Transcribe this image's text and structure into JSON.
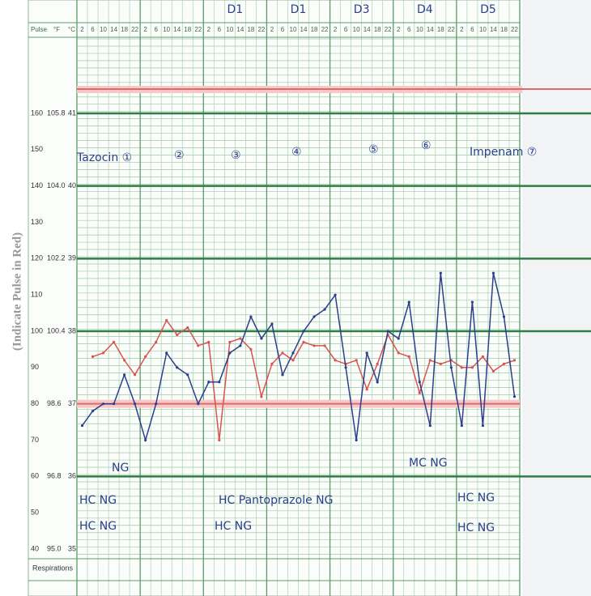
{
  "left_label": "(Indicate Pulse in Red)",
  "header": {
    "pulse": "Pulse",
    "fahrenheit": "°F",
    "celsius": "°C",
    "column_hours": [
      "2",
      "6",
      "10",
      "14",
      "18",
      "22"
    ],
    "days": [
      "D1",
      "D1",
      "D3",
      "D4",
      "D5"
    ]
  },
  "scale": {
    "pulse": [
      160,
      150,
      140,
      130,
      120,
      110,
      100,
      90,
      80,
      70,
      60,
      50,
      40
    ],
    "fahrenheit": [
      "105.8",
      "104.0",
      "102.2",
      "100.4",
      "98.6",
      "96.8",
      "95.0"
    ],
    "celsius": [
      41,
      40,
      39,
      38,
      37,
      36,
      35
    ]
  },
  "traces": {
    "pulse": {
      "color": "#d9534f",
      "values": [
        null,
        93,
        94,
        97,
        92,
        88,
        93,
        97,
        103,
        99,
        101,
        96,
        97,
        70,
        97,
        98,
        95,
        82,
        91,
        94,
        92,
        97,
        96,
        96,
        92,
        91,
        92,
        84,
        91,
        99,
        94,
        93,
        83,
        92,
        91,
        92,
        90,
        90,
        93,
        89,
        91,
        92
      ]
    },
    "temperature": {
      "color": "#2b3f8c",
      "values": [
        36.7,
        36.9,
        37.0,
        37.0,
        37.4,
        37.0,
        36.5,
        37.0,
        37.7,
        37.5,
        37.4,
        37.0,
        37.3,
        37.3,
        37.7,
        37.8,
        38.2,
        37.9,
        38.1,
        37.4,
        37.7,
        38.0,
        38.2,
        38.3,
        38.5,
        37.5,
        36.5,
        37.7,
        37.3,
        38.0,
        37.9,
        38.4,
        37.3,
        36.7,
        38.8,
        37.5,
        36.7,
        38.4,
        36.7,
        38.8,
        38.2,
        37.1
      ]
    }
  },
  "annotations": [
    "Tazocin ①",
    "②",
    "③",
    "④",
    "⑤",
    "⑥",
    "Impenam ⑦",
    "NG",
    "HC NG",
    "HC NG",
    "HC Pantoprazole NG",
    "HC NG",
    "MC NG",
    "HC NG",
    "HC NG"
  ],
  "respirations_label": "Respirations"
}
